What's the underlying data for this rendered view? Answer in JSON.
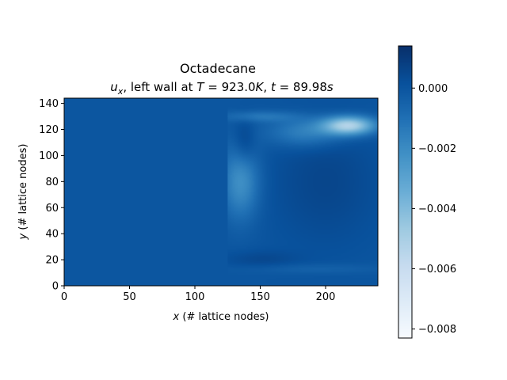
{
  "chart_data": {
    "type": "heatmap",
    "title_line1": "Octadecane",
    "title_line2": {
      "var_base": "u",
      "var_sub": "x",
      "text_mid": ", left wall at ",
      "T_sym": "T",
      "T_eq": " = 923.0",
      "T_unit": "K",
      "sep": ", ",
      "t_sym": "t",
      "t_eq": " = 89.98",
      "t_unit": "s"
    },
    "xlabel": {
      "var": "x",
      "rest": " (# lattice nodes)"
    },
    "ylabel": {
      "var": "y",
      "rest": " (# lattice nodes)"
    },
    "xlim": [
      0,
      240
    ],
    "ylim": [
      0,
      144
    ],
    "x_ticks": [
      "0",
      "50",
      "100",
      "150",
      "200"
    ],
    "x_tick_values": [
      0,
      50,
      100,
      150,
      200
    ],
    "y_ticks": [
      "0",
      "20",
      "40",
      "60",
      "80",
      "100",
      "120",
      "140"
    ],
    "y_tick_values": [
      0,
      20,
      40,
      60,
      80,
      100,
      120,
      140
    ],
    "colorbar": {
      "colormap": "Blues",
      "range": [
        -0.0083,
        0.0014
      ],
      "tick_labels": [
        "0.000",
        "−0.002",
        "−0.004",
        "−0.006",
        "−0.008"
      ],
      "tick_values": [
        0.0,
        -0.002,
        -0.004,
        -0.006,
        -0.008
      ]
    },
    "field": {
      "background_value": 0.0,
      "melt_front_x": 125,
      "features": [
        {
          "kind": "gaussian",
          "x": 135,
          "y": 80,
          "sx": 10,
          "sy": 20,
          "value": -0.0022
        },
        {
          "kind": "gaussian",
          "x": 185,
          "y": 118,
          "sx": 20,
          "sy": 8,
          "value": -0.0018
        },
        {
          "kind": "gaussian",
          "x": 218,
          "y": 123,
          "sx": 14,
          "sy": 5,
          "value": -0.0052
        },
        {
          "kind": "gaussian",
          "x": 150,
          "y": 130,
          "sx": 20,
          "sy": 3,
          "value": -0.0012
        },
        {
          "kind": "gaussian",
          "x": 138,
          "y": 110,
          "sx": 6,
          "sy": 12,
          "value": 0.0009
        },
        {
          "kind": "gaussian",
          "x": 200,
          "y": 80,
          "sx": 30,
          "sy": 35,
          "value": 0.0006
        },
        {
          "kind": "gaussian",
          "x": 150,
          "y": 20,
          "sx": 20,
          "sy": 5,
          "value": 0.0005
        },
        {
          "kind": "gaussian",
          "x": 190,
          "y": 13,
          "sx": 40,
          "sy": 3,
          "value": -0.0005
        }
      ]
    }
  }
}
